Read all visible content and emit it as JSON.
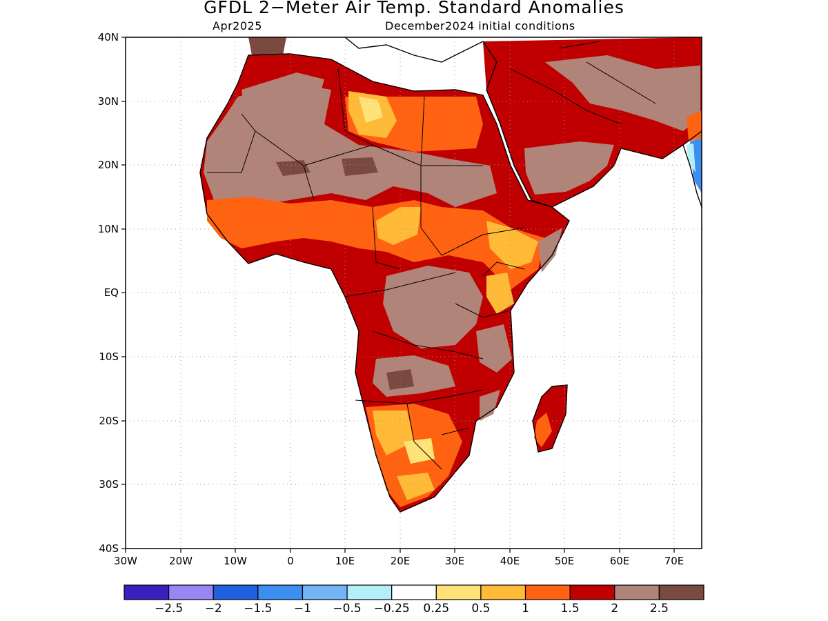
{
  "title": "GFDL 2−Meter Air Temp. Standard Anomalies",
  "valid_month": "Apr2025",
  "initial_conditions": "December2024 initial conditions",
  "map": {
    "lat_labels": [
      "40N",
      "30N",
      "20N",
      "10N",
      "EQ",
      "10S",
      "20S",
      "30S",
      "40S"
    ],
    "lon_labels": [
      "30W",
      "20W",
      "10W",
      "0",
      "10E",
      "20E",
      "30E",
      "40E",
      "50E",
      "60E",
      "70E"
    ],
    "lat_range": [
      -40,
      40
    ],
    "lon_range": [
      -30,
      75
    ],
    "grid": "dotted"
  },
  "colorbar": {
    "colors": [
      "#3b1fbf",
      "#9a86f2",
      "#1f60e0",
      "#3c8ef0",
      "#74b4f4",
      "#b4eef8",
      "#ffffff",
      "#ffe278",
      "#ffba38",
      "#ff6210",
      "#c00000",
      "#b08478",
      "#7a4a40"
    ],
    "labels": [
      "−2.5",
      "−2",
      "−1.5",
      "−1",
      "−0.5",
      "−0.25",
      "0.25",
      "0.5",
      "1",
      "1.5",
      "2",
      "2.5"
    ]
  }
}
